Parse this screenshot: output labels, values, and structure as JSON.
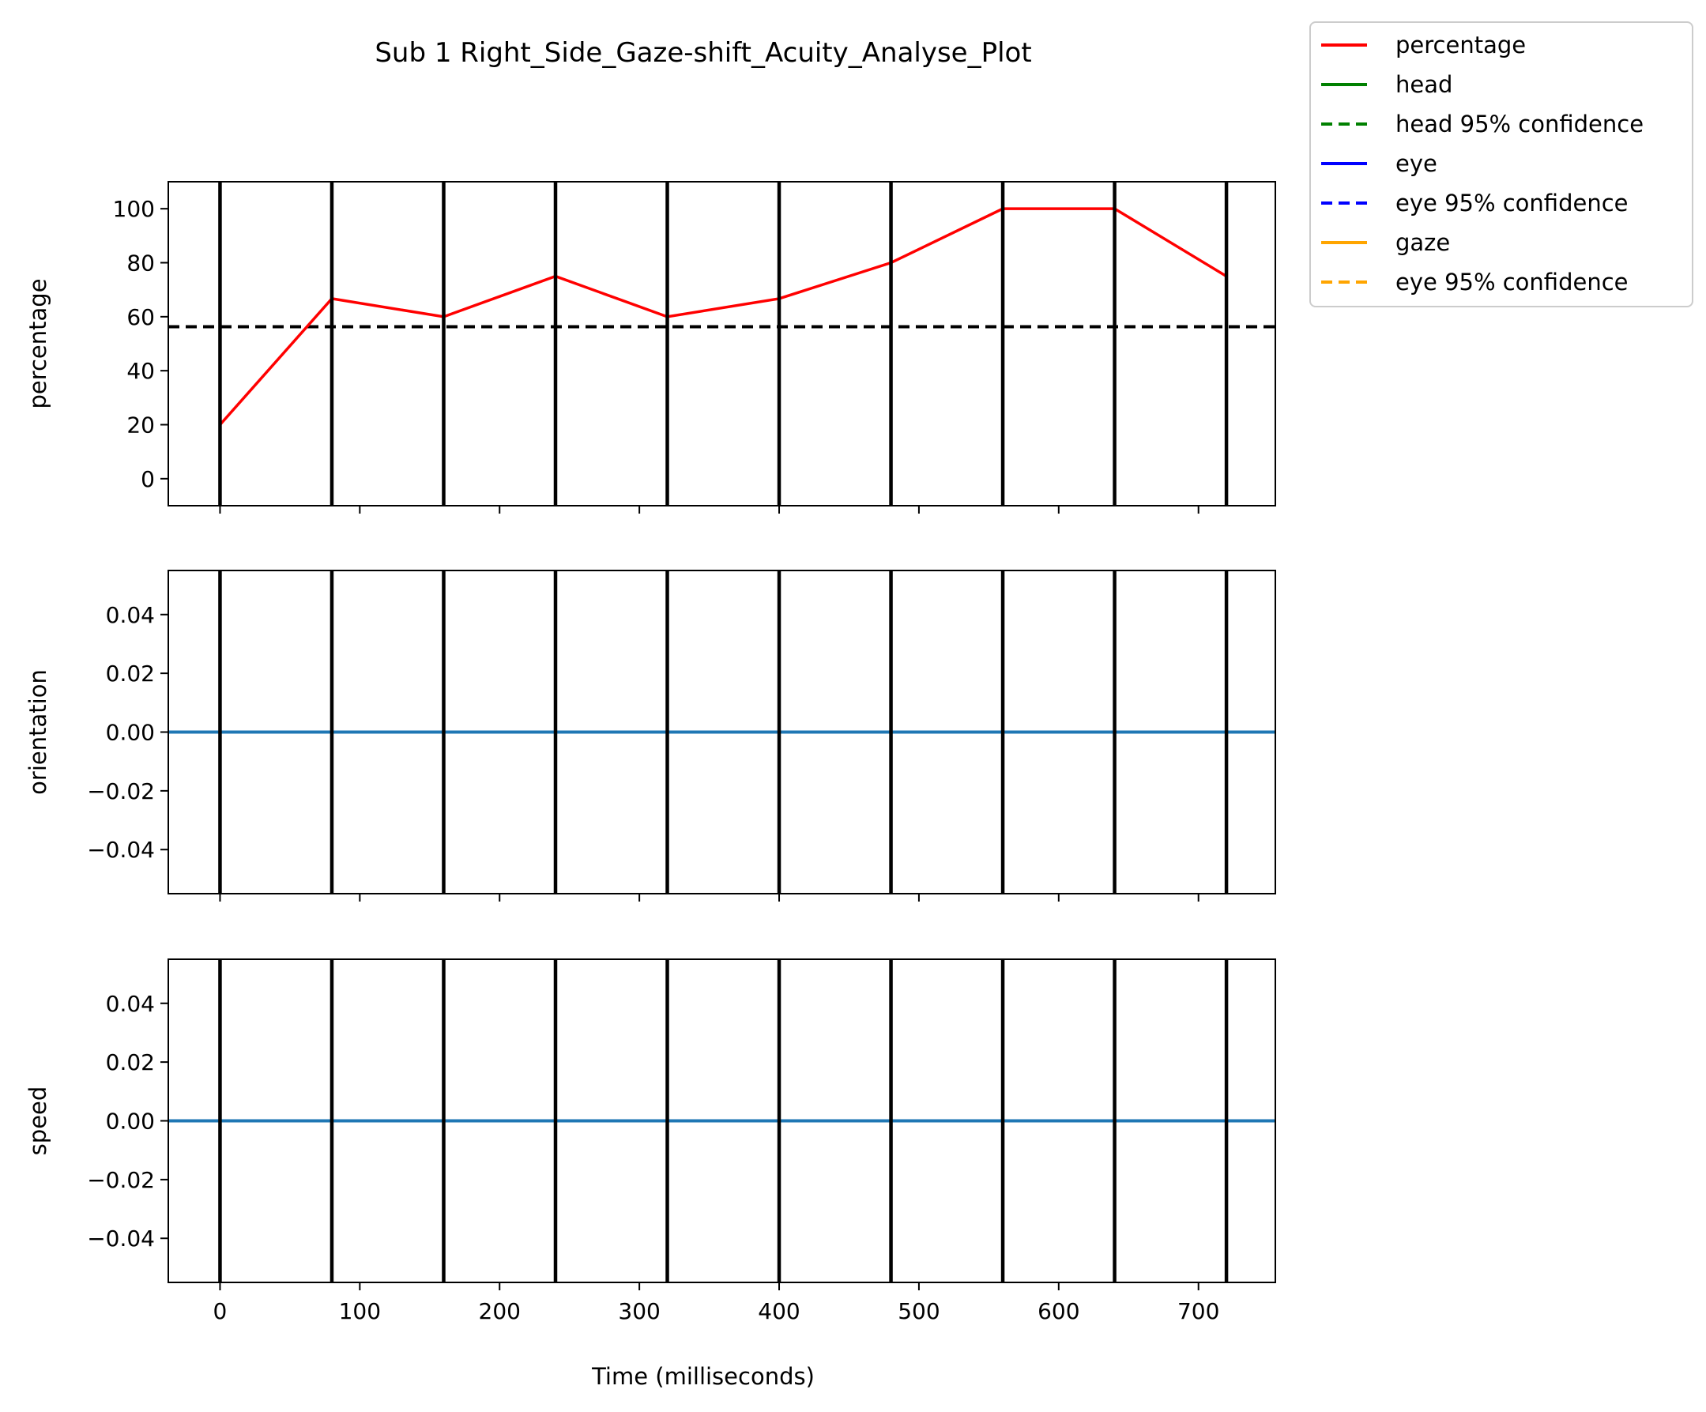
{
  "chart_data": {
    "type": "line",
    "title": "Sub 1 Right_Side_Gaze-shift_Acuity_Analyse_Plot",
    "xlabel": "Time (milliseconds)",
    "xlim": [
      -37,
      755
    ],
    "x_ticks": [
      0,
      100,
      200,
      300,
      400,
      500,
      600,
      700
    ],
    "x_tick_labels": [
      "0",
      "100",
      "200",
      "300",
      "400",
      "500",
      "600",
      "700"
    ],
    "event_markers": [
      0,
      80,
      160,
      240,
      320,
      400,
      480,
      560,
      640,
      720
    ],
    "grid": false,
    "legend_placement": "outside-top-right",
    "legend": [
      {
        "label": "percentage",
        "color": "#ff0000",
        "style": "solid"
      },
      {
        "label": "head",
        "color": "#008000",
        "style": "solid"
      },
      {
        "label": "head 95% confidence",
        "color": "#008000",
        "style": "dashed"
      },
      {
        "label": "eye",
        "color": "#0000ff",
        "style": "solid"
      },
      {
        "label": "eye 95% confidence",
        "color": "#0000ff",
        "style": "dashed"
      },
      {
        "label": "gaze",
        "color": "#ffa500",
        "style": "solid"
      },
      {
        "label": "eye 95% confidence",
        "color": "#ffa500",
        "style": "dashed"
      }
    ],
    "panels": [
      {
        "ylabel": "percentage",
        "ylim": [
          -10,
          110
        ],
        "y_ticks": [
          0,
          20,
          40,
          60,
          80,
          100
        ],
        "y_tick_labels": [
          "0",
          "20",
          "40",
          "60",
          "80",
          "100"
        ],
        "show_x_tick_labels": false,
        "series": [
          {
            "name": "percentage",
            "color": "#ff0000",
            "x": [
              0,
              80,
              160,
              240,
              320,
              400,
              480,
              560,
              640,
              720
            ],
            "y": [
              20,
              66.7,
              60,
              75,
              60,
              66.7,
              80,
              100,
              100,
              75
            ]
          }
        ],
        "hlines": [
          {
            "y": 56.3,
            "color": "#000000",
            "style": "dashed"
          }
        ]
      },
      {
        "ylabel": "orientation",
        "ylim": [
          -0.055,
          0.055
        ],
        "y_ticks": [
          -0.04,
          -0.02,
          0.0,
          0.02,
          0.04
        ],
        "y_tick_labels": [
          "−0.04",
          "−0.02",
          "0.00",
          "0.02",
          "0.04"
        ],
        "show_x_tick_labels": false,
        "series": [],
        "hlines": [
          {
            "y": 0.0,
            "color": "#1f77b4",
            "style": "solid"
          }
        ]
      },
      {
        "ylabel": "speed",
        "ylim": [
          -0.055,
          0.055
        ],
        "y_ticks": [
          -0.04,
          -0.02,
          0.0,
          0.02,
          0.04
        ],
        "y_tick_labels": [
          "−0.04",
          "−0.02",
          "0.00",
          "0.02",
          "0.04"
        ],
        "show_x_tick_labels": true,
        "series": [],
        "hlines": [
          {
            "y": 0.0,
            "color": "#1f77b4",
            "style": "solid"
          }
        ]
      }
    ]
  }
}
